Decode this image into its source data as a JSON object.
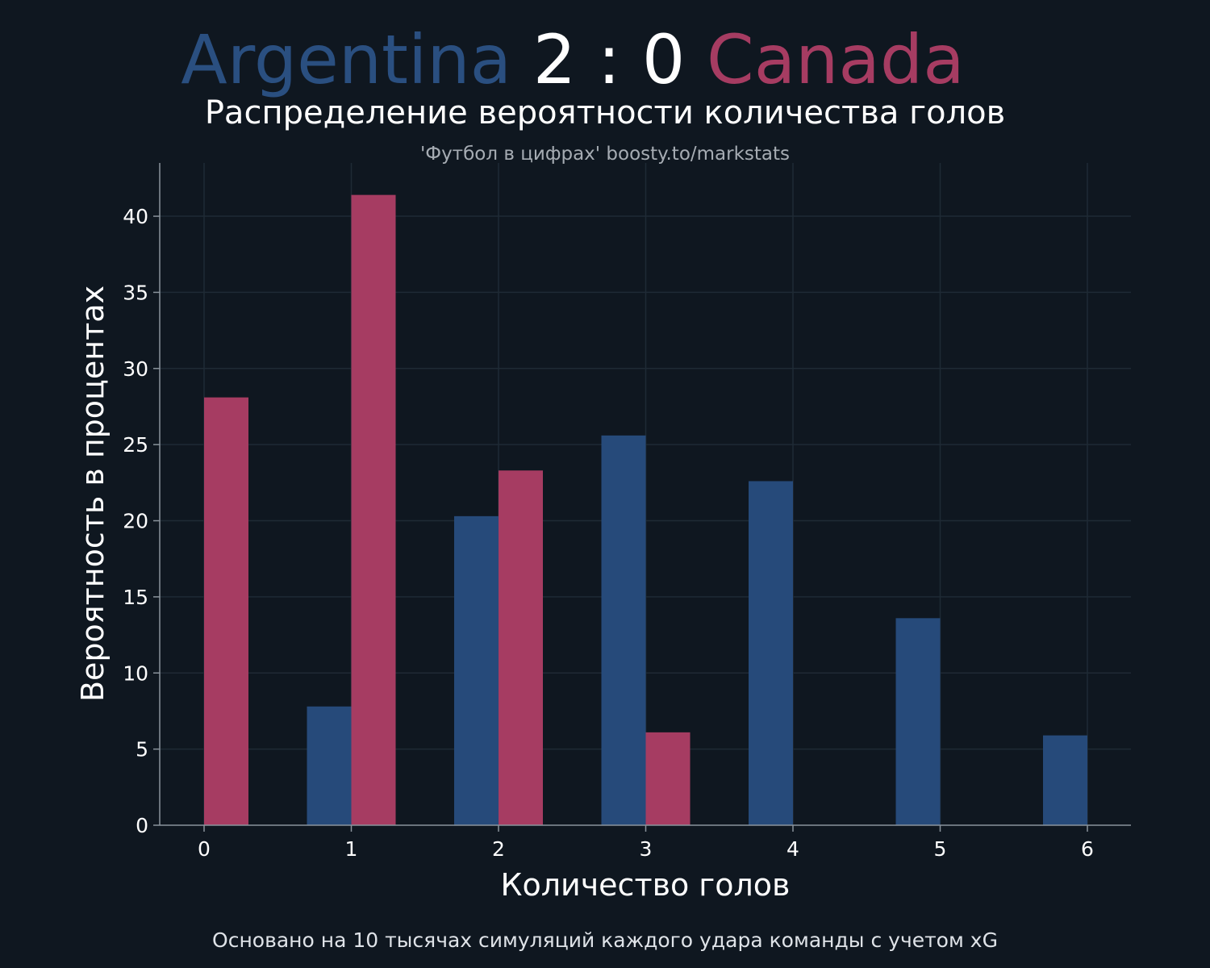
{
  "header": {
    "home_team": "Argentina",
    "score": "2 : 0",
    "away_team": "Canada",
    "subtitle": "Распределение вероятности количества голов",
    "credit": "'Футбол в цифрах' boosty.to/markstats"
  },
  "footer": {
    "note": "Основано на 10 тысячах симуляций каждого удара команды с учетом xG"
  },
  "colors": {
    "background": "#0f1720",
    "home": "#264a7a",
    "away": "#a63c62",
    "grid": "#1f2a35",
    "axis": "#8a939c"
  },
  "chart_data": {
    "type": "bar",
    "xlabel": "Количество голов",
    "ylabel": "Вероятность в процентах",
    "categories": [
      0,
      1,
      2,
      3,
      4,
      5,
      6
    ],
    "x_ticks": [
      "0",
      "1",
      "2",
      "3",
      "4",
      "5",
      "6"
    ],
    "y_ticks": [
      "0",
      "5",
      "10",
      "15",
      "20",
      "25",
      "30",
      "35",
      "40"
    ],
    "ylim": [
      0,
      43.5
    ],
    "grid": true,
    "series": [
      {
        "name": "Argentina",
        "values": [
          0,
          7.8,
          20.3,
          25.6,
          22.6,
          13.6,
          5.9
        ]
      },
      {
        "name": "Canada",
        "values": [
          28.1,
          41.4,
          23.3,
          6.1,
          0,
          0,
          0
        ]
      }
    ]
  }
}
